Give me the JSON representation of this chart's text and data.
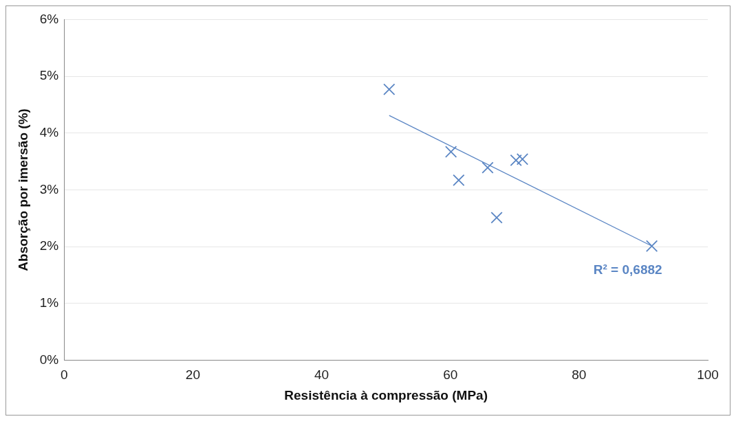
{
  "chart_data": {
    "type": "scatter",
    "xlabel": "Resistência à compressão (MPa)",
    "ylabel": "Absorção por imersão (%)",
    "xlim": [
      0,
      100
    ],
    "xticks": [
      0,
      20,
      40,
      60,
      80,
      100
    ],
    "ylim": [
      0,
      6
    ],
    "yticks": [
      {
        "value": 0,
        "label": "0%"
      },
      {
        "value": 1,
        "label": "1%"
      },
      {
        "value": 2,
        "label": "2%"
      },
      {
        "value": 3,
        "label": "3%"
      },
      {
        "value": 4,
        "label": "4%"
      },
      {
        "value": 5,
        "label": "5%"
      },
      {
        "value": 6,
        "label": "6%"
      }
    ],
    "grid": "y",
    "legend": false,
    "series": [
      {
        "type": "scatter",
        "color": "#5b86c4",
        "marker": "cross",
        "x": [
          50.5,
          60.1,
          61.3,
          65.8,
          67.2,
          70.2,
          71.2,
          91.3
        ],
        "values": [
          4.77,
          3.67,
          3.17,
          3.39,
          2.51,
          3.52,
          3.54,
          2.01
        ]
      },
      {
        "type": "line",
        "color": "#5b86c4",
        "marker": "none",
        "x": [
          50.5,
          91.3
        ],
        "values": [
          4.31,
          2.01
        ]
      }
    ],
    "annotations": [
      "R² = 0,6882"
    ]
  }
}
